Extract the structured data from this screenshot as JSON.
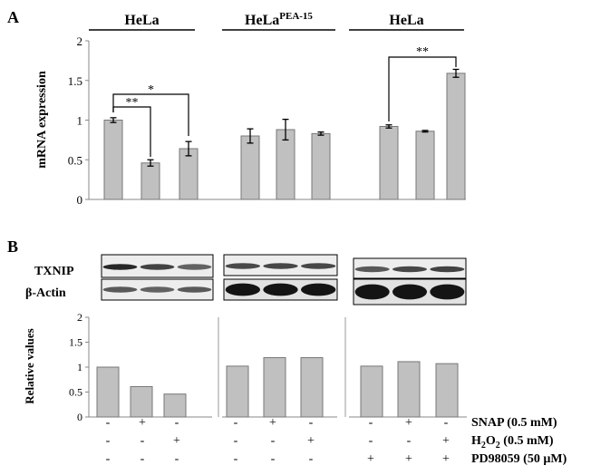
{
  "panel_a": {
    "label": "A",
    "group_titles": [
      {
        "main": "HeLa",
        "sup": ""
      },
      {
        "main": "HeLa",
        "sup": "PEA-15"
      },
      {
        "main": "HeLa",
        "sup": ""
      }
    ],
    "ylabel": "mRNA expression",
    "yticks": [
      "0",
      "0.5",
      "1",
      "1.5",
      "2"
    ],
    "significance": [
      {
        "label": "**"
      },
      {
        "label": "*"
      },
      {
        "label": "**"
      }
    ]
  },
  "panel_b": {
    "label": "B",
    "blot_labels": [
      "TXNIP",
      "β-Actin"
    ],
    "ylabel": "Relative values",
    "yticks": [
      "0",
      "0.5",
      "1",
      "1.5",
      "2"
    ],
    "treatments": [
      {
        "name": "SNAP (0.5 mM)",
        "signs": [
          "-",
          "+",
          "-",
          "-",
          "+",
          "-",
          "-",
          "+",
          "-"
        ]
      },
      {
        "name": "H2O2 (0.5 mM)",
        "name_parts": [
          "H",
          "2",
          "O",
          "2",
          " (0.5 mM)"
        ],
        "signs": [
          "-",
          "-",
          "+",
          "-",
          "-",
          "+",
          "-",
          "-",
          "+"
        ]
      },
      {
        "name": "PD98059 (50 µM)",
        "signs": [
          "-",
          "-",
          "-",
          "-",
          "-",
          "-",
          "+",
          "+",
          "+"
        ]
      }
    ]
  },
  "chart_data": [
    {
      "type": "bar",
      "panel": "A",
      "ylabel": "mRNA expression",
      "ylim": [
        0,
        2
      ],
      "groups": [
        "HeLa",
        "HeLaPEA-15",
        "HeLa"
      ],
      "values": [
        1.0,
        0.46,
        0.64,
        0.8,
        0.88,
        0.83,
        0.92,
        0.86,
        1.59
      ],
      "errors": [
        0.03,
        0.04,
        0.09,
        0.09,
        0.13,
        0.02,
        0.02,
        0.01,
        0.05
      ],
      "colors": {
        "bar": "#c0c0c0",
        "edge": "#777777"
      }
    },
    {
      "type": "bar",
      "panel": "B",
      "ylabel": "Relative values",
      "ylim": [
        0,
        2
      ],
      "values": [
        1.0,
        0.61,
        0.46,
        1.02,
        1.19,
        1.19,
        1.02,
        1.11,
        1.07
      ],
      "colors": {
        "bar": "#c0c0c0",
        "edge": "#777777"
      }
    }
  ]
}
